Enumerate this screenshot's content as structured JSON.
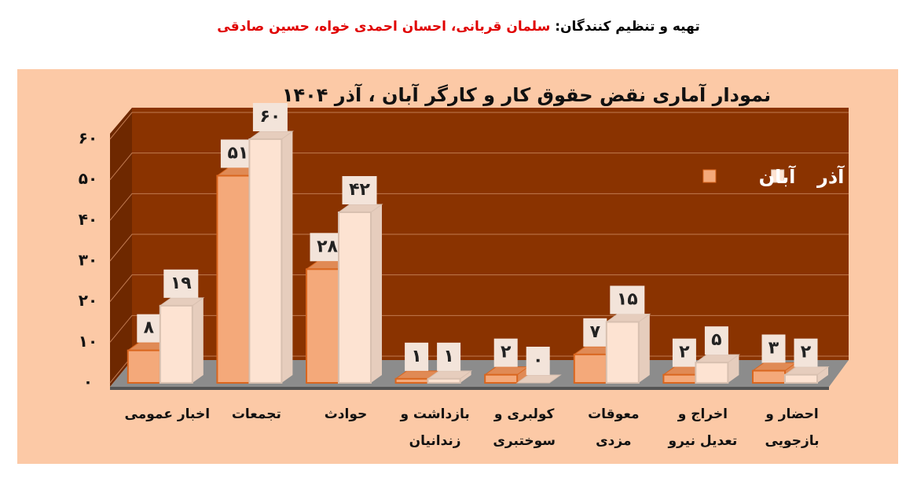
{
  "header": {
    "label": "تهیه و تنظیم کنندگان:",
    "authors": "سلمان قربانی، احسان احمدی خواه، حسین صادقی"
  },
  "chart_data": {
    "type": "bar3d",
    "title": "نمودار آماری نقض حقوق کار و کارگر آبان ، آذر ۱۴۰۴",
    "categories": [
      "اخبار عمومی",
      "تجمعات",
      "حوادث",
      "بازداشت و زندانیان",
      "کولبری و سوختبری",
      "معوقات مزدی",
      "اخراج و تعدیل نیرو",
      "احضار و بازجویی"
    ],
    "series": [
      {
        "name": "آبان",
        "color": "#f4a97a",
        "values": [
          8,
          51,
          28,
          1,
          2,
          7,
          2,
          3
        ],
        "value_labels": [
          "۸",
          "۵۱",
          "۲۸",
          "۱",
          "۲",
          "۷",
          "۲",
          "۳"
        ]
      },
      {
        "name": "آذر",
        "color": "#fde3d2",
        "values": [
          19,
          60,
          42,
          1,
          0,
          15,
          5,
          2
        ],
        "value_labels": [
          "۱۹",
          "۶۰",
          "۴۲",
          "۱",
          "۰",
          "۱۵",
          "۵",
          "۲"
        ]
      }
    ],
    "ylim": [
      0,
      60
    ],
    "yticks": [
      {
        "value": 0,
        "label": "۰"
      },
      {
        "value": 10,
        "label": "۱۰"
      },
      {
        "value": 20,
        "label": "۲۰"
      },
      {
        "value": 30,
        "label": "۳۰"
      },
      {
        "value": 40,
        "label": "۴۰"
      },
      {
        "value": 50,
        "label": "۵۰"
      },
      {
        "value": 60,
        "label": "۶۰"
      }
    ],
    "grid": true
  }
}
